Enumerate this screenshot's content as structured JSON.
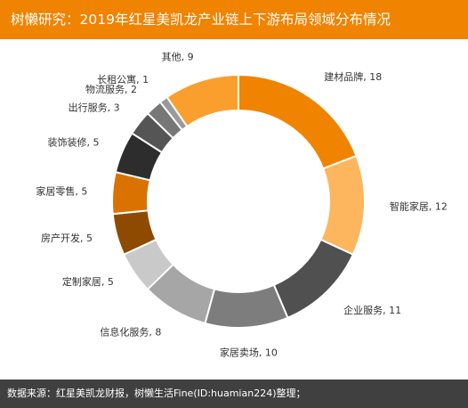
{
  "header": {
    "title": "树懒研究：2019年红星美凯龙产业链上下游布局领域分布情况"
  },
  "footer": {
    "source": "数据来源：红星美凯龙财报，树懒生活Fine(ID:huamian224)整理；"
  },
  "chart_data": {
    "type": "pie",
    "variant": "donut",
    "title": "树懒研究：2019年红星美凯龙产业链上下游布局领域分布情况",
    "categories": [
      "建材品牌",
      "智能家居",
      "企业服务",
      "家居卖场",
      "信息化服务",
      "定制家居",
      "房产开发",
      "家居零售",
      "装饰装修",
      "出行服务",
      "物流服务",
      "长租公寓",
      "其他"
    ],
    "values": [
      18,
      12,
      11,
      10,
      8,
      5,
      5,
      5,
      5,
      3,
      2,
      1,
      9
    ],
    "colors": [
      "#f08300",
      "#fdb55e",
      "#505050",
      "#7d7d7d",
      "#a6a6a6",
      "#c9c9c9",
      "#8e4a00",
      "#d97200",
      "#2d2d2d",
      "#555555",
      "#777777",
      "#9a9a9a",
      "#fa9f2e"
    ],
    "legend": "none",
    "data_labels": "outside"
  }
}
